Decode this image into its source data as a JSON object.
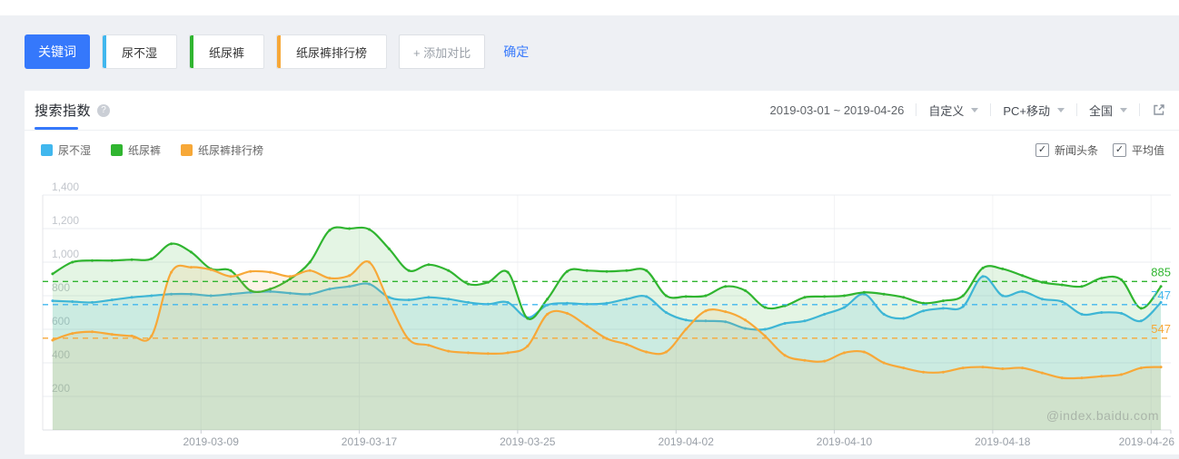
{
  "keyword_bar": {
    "label_button": "关键词",
    "keywords": [
      {
        "text": "尿不湿",
        "accent": "#41b7ee"
      },
      {
        "text": "纸尿裤",
        "accent": "#30b530"
      },
      {
        "text": "纸尿裤排行榜",
        "accent": "#f7a838"
      }
    ],
    "add_compare_label": "+ 添加对比",
    "confirm_label": "确定"
  },
  "panel": {
    "active_tab": "搜索指数",
    "help_icon": "question-circle-icon",
    "date_range": "2019-03-01 ~ 2019-04-26",
    "dropdowns": [
      {
        "label": "自定义"
      },
      {
        "label": "PC+移动"
      },
      {
        "label": "全国"
      }
    ],
    "checkboxes": [
      {
        "label": "新闻头条",
        "checked": true
      },
      {
        "label": "平均值",
        "checked": true
      }
    ],
    "watermark": "@index.baidu.com"
  },
  "chart_data": {
    "type": "line",
    "title": "搜索指数",
    "x_start": "2019-03-01",
    "x_end": "2019-04-26",
    "days": 57,
    "x_tick_labels": [
      "2019-03-09",
      "2019-03-17",
      "2019-03-25",
      "2019-04-02",
      "2019-04-10",
      "2019-04-18",
      "2019-04-26"
    ],
    "ylim": [
      0,
      1400
    ],
    "yticks": [
      200,
      400,
      600,
      800,
      1000,
      1200,
      1400
    ],
    "grid": true,
    "legend_position": "top-left",
    "smooth": true,
    "series": [
      {
        "name": "尿不湿",
        "color": "#41b7ee",
        "fill": "rgba(65,183,238,0.15)",
        "average": 747,
        "values": [
          770,
          765,
          760,
          775,
          790,
          800,
          810,
          810,
          800,
          810,
          820,
          825,
          815,
          810,
          840,
          855,
          870,
          790,
          775,
          790,
          780,
          760,
          750,
          760,
          670,
          745,
          755,
          750,
          755,
          780,
          795,
          700,
          655,
          650,
          645,
          605,
          600,
          635,
          650,
          690,
          730,
          810,
          690,
          665,
          710,
          725,
          735,
          915,
          800,
          825,
          780,
          765,
          690,
          700,
          695,
          650,
          760
        ]
      },
      {
        "name": "纸尿裤",
        "color": "#30b530",
        "fill": "rgba(48,181,48,0.13)",
        "average": 885,
        "values": [
          930,
          1000,
          1010,
          1010,
          1015,
          1020,
          1110,
          1060,
          960,
          950,
          830,
          840,
          900,
          1000,
          1190,
          1200,
          1195,
          1080,
          950,
          985,
          950,
          870,
          880,
          940,
          665,
          780,
          945,
          950,
          945,
          950,
          950,
          800,
          795,
          800,
          855,
          830,
          730,
          740,
          790,
          795,
          800,
          820,
          810,
          790,
          755,
          770,
          800,
          965,
          960,
          920,
          880,
          865,
          855,
          905,
          895,
          725,
          855
        ]
      },
      {
        "name": "纸尿裤排行榜",
        "color": "#f7a838",
        "fill": "rgba(247,168,56,0.12)",
        "average": 547,
        "values": [
          535,
          575,
          585,
          570,
          560,
          560,
          940,
          970,
          955,
          915,
          945,
          940,
          915,
          950,
          905,
          920,
          1000,
          760,
          540,
          505,
          470,
          460,
          455,
          460,
          500,
          690,
          695,
          620,
          545,
          510,
          465,
          465,
          600,
          710,
          705,
          655,
          560,
          445,
          415,
          410,
          460,
          465,
          400,
          370,
          345,
          345,
          370,
          375,
          365,
          370,
          340,
          310,
          310,
          320,
          330,
          370,
          375
        ]
      }
    ]
  }
}
